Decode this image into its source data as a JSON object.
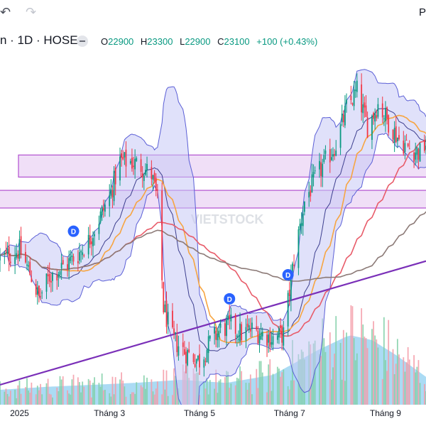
{
  "toolbar": {
    "undo_icon": "undo-arrow-icon",
    "redo_icon": "redo-arrow-icon",
    "right_label": "P"
  },
  "legend": {
    "symbol": "n · 1D · HOSE",
    "open_label": "O",
    "open": "22900",
    "high_label": "H",
    "high": "23300",
    "low_label": "L",
    "low": "22900",
    "close_label": "C",
    "close": "23100",
    "change": "+100 (+0.43%)",
    "up_color": "#089981"
  },
  "watermark": "VIETSTOCK",
  "chart_data": {
    "type": "candlestick",
    "x_tick_labels": [
      "2025",
      "Tháng 3",
      "Tháng 5",
      "Tháng 7",
      "Tháng 9"
    ],
    "x_ticks": [
      "2025-01-02",
      "2025-03-03",
      "2025-05-02",
      "2025-07-01",
      "2025-09-03"
    ],
    "x_range": [
      "2024-12-20",
      "2025-09-30"
    ],
    "y_range_price": [
      16200,
      24200
    ],
    "dividend_markers": [
      {
        "date": "2025-02-07",
        "label": "D"
      },
      {
        "date": "2025-05-22",
        "label": "D"
      },
      {
        "date": "2025-06-30",
        "label": "D"
      }
    ],
    "resistance_zones": [
      [
        21350,
        21850
      ],
      [
        20650,
        21050
      ]
    ],
    "trendline": [
      [
        "2024-12-20",
        16650
      ],
      [
        "2025-09-30",
        19450
      ]
    ],
    "price_path": [
      [
        "2024-12-20",
        19500
      ],
      [
        "2025-01-02",
        19700
      ],
      [
        "2025-01-10",
        19100
      ],
      [
        "2025-01-15",
        18600
      ],
      [
        "2025-01-22",
        19100
      ],
      [
        "2025-02-03",
        19400
      ],
      [
        "2025-02-10",
        19600
      ],
      [
        "2025-02-17",
        19900
      ],
      [
        "2025-02-24",
        20400
      ],
      [
        "2025-03-03",
        20900
      ],
      [
        "2025-03-10",
        21700
      ],
      [
        "2025-03-17",
        21700
      ],
      [
        "2025-03-24",
        21600
      ],
      [
        "2025-03-31",
        21400
      ],
      [
        "2025-04-04",
        20800
      ],
      [
        "2025-04-08",
        18400
      ],
      [
        "2025-04-14",
        17700
      ],
      [
        "2025-04-22",
        17400
      ],
      [
        "2025-05-02",
        17200
      ],
      [
        "2025-05-09",
        17600
      ],
      [
        "2025-05-16",
        17900
      ],
      [
        "2025-05-23",
        18000
      ],
      [
        "2025-05-30",
        17800
      ],
      [
        "2025-06-06",
        17900
      ],
      [
        "2025-06-13",
        17800
      ],
      [
        "2025-06-20",
        17700
      ],
      [
        "2025-06-27",
        17800
      ],
      [
        "2025-07-04",
        19500
      ],
      [
        "2025-07-11",
        20800
      ],
      [
        "2025-07-18",
        21300
      ],
      [
        "2025-07-25",
        21700
      ],
      [
        "2025-08-01",
        22100
      ],
      [
        "2025-08-08",
        22900
      ],
      [
        "2025-08-15",
        23300
      ],
      [
        "2025-08-22",
        22500
      ],
      [
        "2025-08-29",
        23000
      ],
      [
        "2025-09-05",
        22600
      ],
      [
        "2025-09-12",
        22200
      ],
      [
        "2025-09-19",
        22000
      ],
      [
        "2025-09-26",
        21900
      ],
      [
        "2025-09-30",
        22100
      ]
    ],
    "volume_profile": [
      [
        "2024-12-20",
        0.15
      ],
      [
        "2025-01-20",
        0.18
      ],
      [
        "2025-02-20",
        0.2
      ],
      [
        "2025-03-20",
        0.22
      ],
      [
        "2025-04-20",
        0.25
      ],
      [
        "2025-05-20",
        0.22
      ],
      [
        "2025-06-20",
        0.3
      ],
      [
        "2025-07-20",
        0.55
      ],
      [
        "2025-08-10",
        0.7
      ],
      [
        "2025-08-25",
        0.65
      ],
      [
        "2025-09-10",
        0.5
      ],
      [
        "2025-09-30",
        0.28
      ]
    ],
    "series": [
      {
        "type": "candles",
        "up_color": "#089981",
        "down_color": "#f23645"
      },
      {
        "type": "bollinger_bands",
        "color": "#5b5fd6",
        "fill": "#c7c9f5"
      },
      {
        "type": "moving_average",
        "color": "#f7a541"
      },
      {
        "type": "moving_average",
        "color": "#e85c6a"
      },
      {
        "type": "moving_average",
        "color": "#8c7a77"
      },
      {
        "type": "volume",
        "up_color": "#7fcfa6",
        "down_color": "#f59aa6",
        "area_color": "#8fcff0"
      }
    ]
  }
}
